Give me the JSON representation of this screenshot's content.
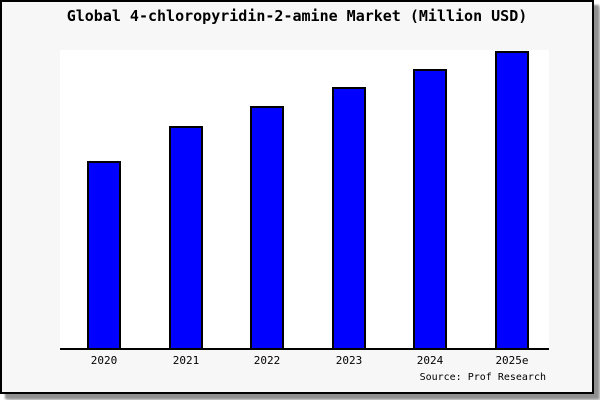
{
  "chart": {
    "title": "Global 4-chloropyridin-2-amine Market (Million USD)",
    "source_note": "Source: Prof Research"
  },
  "chart_data": {
    "type": "bar",
    "title": "Global 4-chloropyridin-2-amine Market (Million USD)",
    "categories": [
      "2020",
      "2021",
      "2022",
      "2023",
      "2024",
      "2025e"
    ],
    "values": [
      63,
      75,
      81.5,
      88,
      94,
      100
    ],
    "xlabel": "",
    "ylabel": "",
    "ylim": [
      0,
      100.5
    ],
    "y_axis_visible": false,
    "grid": false,
    "legend": false,
    "annotation": "Source: Prof Research",
    "bar_color": "#0000ff",
    "bar_border_color": "#000000",
    "plot_background": "#ffffff",
    "frame_background": "#f7f7f7",
    "values_note": "relative estimates; y-axis is unlabeled in source image"
  }
}
